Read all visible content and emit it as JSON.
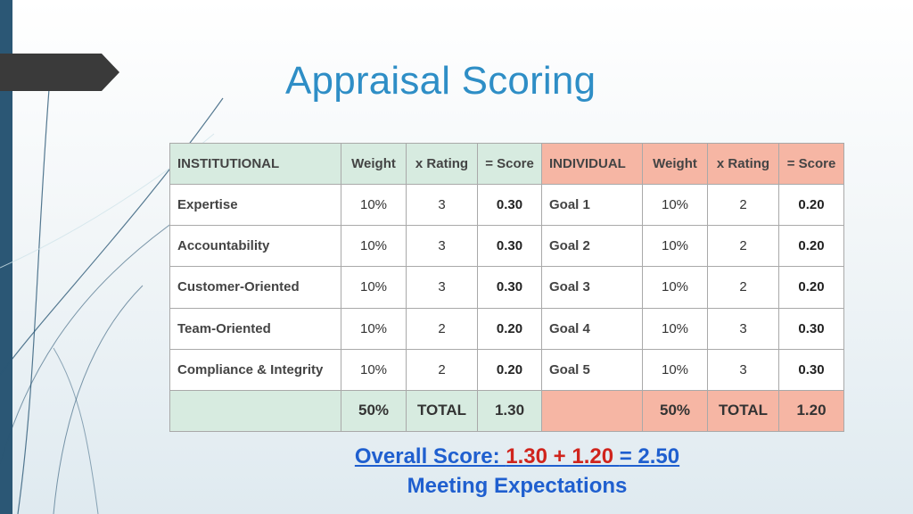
{
  "title": "Appraisal Scoring",
  "colors": {
    "accent": "#2e8ec6",
    "sidebar": "#2b5775",
    "institutional_fill": "#d7ebe0",
    "individual_fill": "#f6b6a4",
    "summary_blue": "#1f5fcf",
    "summary_red": "#d0241d"
  },
  "table": {
    "headers": [
      "INSTITUTIONAL",
      "Weight",
      "x Rating",
      "= Score",
      "INDIVIDUAL",
      "Weight",
      "x Rating",
      "= Score"
    ],
    "rows": [
      [
        "Expertise",
        "10%",
        "3",
        "0.30",
        "Goal 1",
        "10%",
        "2",
        "0.20"
      ],
      [
        "Accountability",
        "10%",
        "3",
        "0.30",
        "Goal 2",
        "10%",
        "2",
        "0.20"
      ],
      [
        "Customer-Oriented",
        "10%",
        "3",
        "0.30",
        "Goal 3",
        "10%",
        "2",
        "0.20"
      ],
      [
        "Team-Oriented",
        "10%",
        "2",
        "0.20",
        "Goal 4",
        "10%",
        "3",
        "0.30"
      ],
      [
        "Compliance & Integrity",
        "10%",
        "2",
        "0.20",
        "Goal 5",
        "10%",
        "3",
        "0.30"
      ]
    ],
    "totals": [
      "",
      "50%",
      "TOTAL",
      "1.30",
      "",
      "50%",
      "TOTAL",
      "1.20"
    ]
  },
  "summary": {
    "prefix": "Overall Score: ",
    "expression": "1.30 + 1.20 ",
    "result": "= 2.50",
    "rating": "Meeting Expectations"
  }
}
